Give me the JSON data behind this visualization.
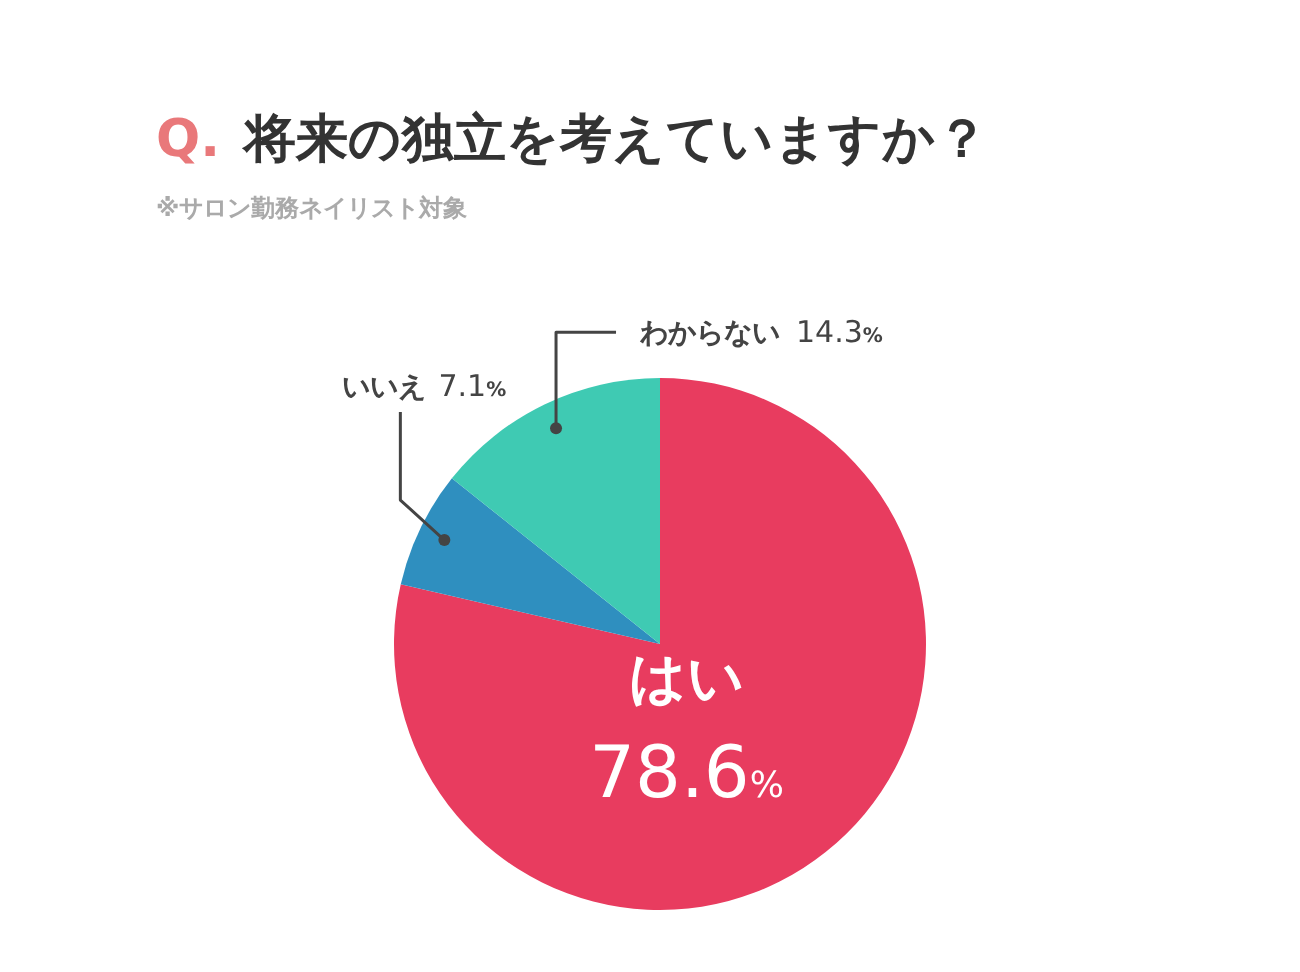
{
  "chart_data": {
    "type": "pie",
    "title": "Q. 将来の独立を考えていますか？",
    "subtitle": "※サロン勤務ネイリスト対象",
    "categories": [
      "はい",
      "いいえ",
      "わからない"
    ],
    "values": [
      78.6,
      7.1,
      14.3
    ],
    "colors": [
      "#e83c5f",
      "#2f8fbf",
      "#3fcab3"
    ],
    "value_labels": [
      "78.6%",
      "7.1%",
      "14.3%"
    ]
  }
}
